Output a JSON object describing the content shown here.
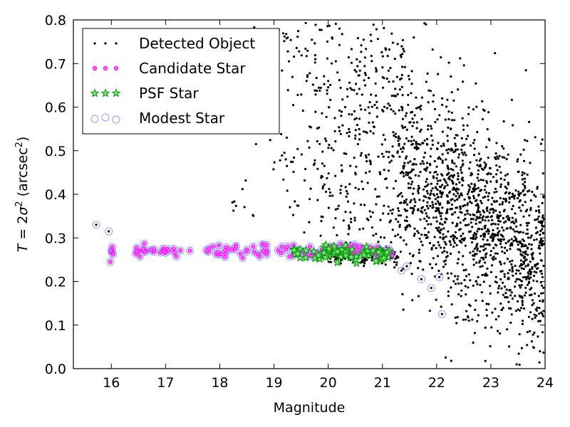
{
  "chart_data": {
    "type": "scatter",
    "xlabel": "Magnitude",
    "ylabel": {
      "prefix": "T",
      "eq": " = 2",
      "sigma": "σ",
      "sq": "2",
      "unit_open": " (arcsec",
      "unit_sup": "2",
      "unit_close": ")"
    },
    "xlim": [
      15.3,
      24
    ],
    "ylim": [
      0.0,
      0.8
    ],
    "xticks": [
      16,
      17,
      18,
      19,
      20,
      21,
      22,
      23,
      24
    ],
    "yticks": [
      0.0,
      0.1,
      0.2,
      0.3,
      0.4,
      0.5,
      0.6,
      0.7,
      0.8
    ],
    "xtick_labels": [
      "16",
      "17",
      "18",
      "19",
      "20",
      "21",
      "22",
      "23",
      "24"
    ],
    "ytick_labels": [
      "0.0",
      "0.1",
      "0.2",
      "0.3",
      "0.4",
      "0.5",
      "0.6",
      "0.7",
      "0.8"
    ],
    "grid": false,
    "legend_position": "top-left",
    "colors": {
      "detected": "#000000",
      "candidate": "#ff00ff",
      "psf": "#00aa00",
      "modest": "#9999ff"
    },
    "series": [
      {
        "name": "Detected Object",
        "marker": "dot",
        "distribution": "dense cloud of faint objects concentrated at magnitude 21.3-24 with sizes 0.0-0.8, plus sparse points from magnitude 18 to 21",
        "approx_count": 2200
      },
      {
        "name": "Candidate Star",
        "marker": "small-magenta-circle",
        "distribution": "stellar locus at size ~0.27 from magnitude 15.9 to 21.2"
      },
      {
        "name": "PSF Star",
        "marker": "green-star",
        "distribution": "stellar locus at size ~0.26-0.28 from magnitude 19.3 to 21.2"
      },
      {
        "name": "Modest Star",
        "marker": "open-lavender-circle",
        "distribution": "stellar locus at size ~0.27 from magnitude 15.7 to 22.1, bending to lower sizes at faint end",
        "outliers": [
          [
            15.72,
            0.33
          ],
          [
            15.95,
            0.315
          ],
          [
            21.35,
            0.225
          ],
          [
            21.45,
            0.235
          ],
          [
            21.72,
            0.205
          ],
          [
            21.9,
            0.185
          ],
          [
            22.05,
            0.21
          ],
          [
            22.1,
            0.125
          ]
        ]
      }
    ]
  }
}
